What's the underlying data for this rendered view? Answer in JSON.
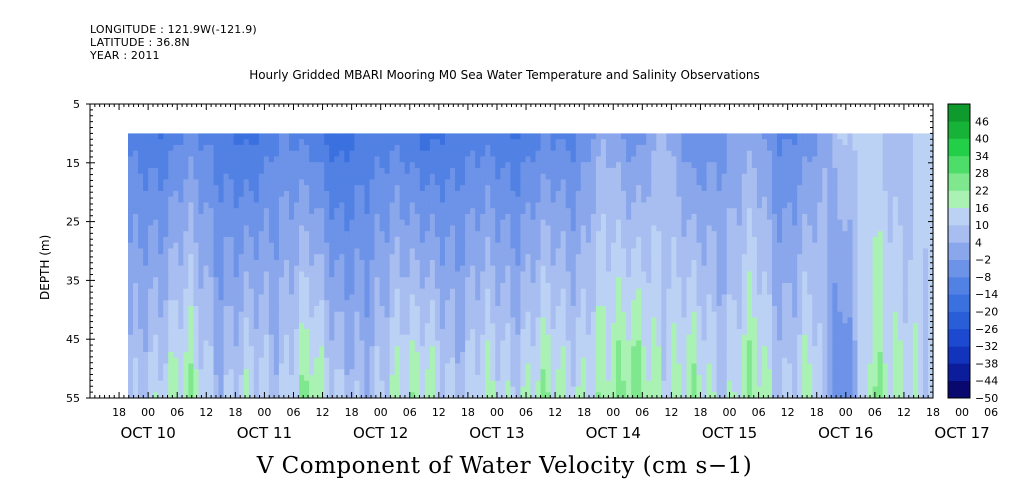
{
  "header": {
    "longitude": "LONGITUDE : 121.9W(-121.9)",
    "latitude": "LATITUDE : 36.8N",
    "year": "YEAR : 2011"
  },
  "chart_data": {
    "type": "heatmap",
    "title": "Hourly Gridded MBARI Mooring M0 Sea Water Temperature and Salinity Observations",
    "xlabel": "V Component of Water Velocity (cm s−1)",
    "ylabel": "DEPTH (m)",
    "ylim": [
      55,
      5
    ],
    "y_ticks": [
      "5",
      "15",
      "25",
      "35",
      "45",
      "55"
    ],
    "data_depth_range": [
      10,
      55
    ],
    "x_hour_ticks": [
      "18",
      "00",
      "06",
      "12",
      "18",
      "00",
      "06",
      "12",
      "18",
      "00",
      "06",
      "12",
      "18",
      "00",
      "06",
      "12",
      "18",
      "00",
      "06",
      "12",
      "18",
      "00",
      "06",
      "12",
      "18",
      "00",
      "06",
      "12",
      "18",
      "00",
      "06",
      "12"
    ],
    "x_day_labels": [
      "OCT 10",
      "OCT 11",
      "OCT 12",
      "OCT 13",
      "OCT 14",
      "OCT 15",
      "OCT 16",
      "OCT 17"
    ],
    "colorbar_labels": [
      "46",
      "40",
      "34",
      "28",
      "22",
      "16",
      "10",
      "4",
      "−2",
      "−8",
      "−14",
      "−20",
      "−26",
      "−32",
      "−38",
      "−44",
      "−50"
    ],
    "colorbar_range": [
      -50,
      52
    ],
    "grid": false,
    "colors": {
      "negative": "#3f6ee0",
      "positive": "#1fdc4a"
    },
    "gridded_values_note": "",
    "profiles": [
      {
        "time": "OCT 10 21:00",
        "top": -10,
        "bottom": 8
      },
      {
        "time": "OCT 11 03:00",
        "top": -14,
        "bottom": 14
      },
      {
        "time": "OCT 11 09:00",
        "top": -6,
        "bottom": 22
      },
      {
        "time": "OCT 11 15:00",
        "top": -12,
        "bottom": 6
      },
      {
        "time": "OCT 11 21:00",
        "top": -16,
        "bottom": 16
      },
      {
        "time": "OCT 12 03:00",
        "top": -8,
        "bottom": 8
      },
      {
        "time": "OCT 12 09:00",
        "top": -10,
        "bottom": 24
      },
      {
        "time": "OCT 12 15:00",
        "top": -18,
        "bottom": 10
      },
      {
        "time": "OCT 12 21:00",
        "top": -12,
        "bottom": 6
      },
      {
        "time": "OCT 13 03:00",
        "top": -10,
        "bottom": 18
      },
      {
        "time": "OCT 13 09:00",
        "top": -16,
        "bottom": 20
      },
      {
        "time": "OCT 13 15:00",
        "top": -12,
        "bottom": 8
      },
      {
        "time": "OCT 13 21:00",
        "top": -10,
        "bottom": 18
      },
      {
        "time": "OCT 14 03:00",
        "top": -14,
        "bottom": 12
      },
      {
        "time": "OCT 14 09:00",
        "top": -8,
        "bottom": 22
      },
      {
        "time": "OCT 14 15:00",
        "top": -10,
        "bottom": 14
      },
      {
        "time": "OCT 14 21:00",
        "top": 4,
        "bottom": 20
      },
      {
        "time": "OCT 15 03:00",
        "top": -6,
        "bottom": 26
      },
      {
        "time": "OCT 15 09:00",
        "top": 6,
        "bottom": 14
      },
      {
        "time": "OCT 15 15:00",
        "top": -8,
        "bottom": 22
      },
      {
        "time": "OCT 15 21:00",
        "top": -4,
        "bottom": 10
      },
      {
        "time": "OCT 16 03:00",
        "top": 2,
        "bottom": 24
      },
      {
        "time": "OCT 16 09:00",
        "top": -10,
        "bottom": 8
      },
      {
        "time": "OCT 16 15:00",
        "top": -4,
        "bottom": 20
      },
      {
        "time": "OCT 16 21:00",
        "top": 10,
        "bottom": -12
      },
      {
        "time": "OCT 17 03:00",
        "top": 12,
        "bottom": 22
      },
      {
        "time": "OCT 17 09:00",
        "top": 4,
        "bottom": 16
      },
      {
        "time": "OCT 17 15:00",
        "top": 14,
        "bottom": 12
      }
    ]
  }
}
